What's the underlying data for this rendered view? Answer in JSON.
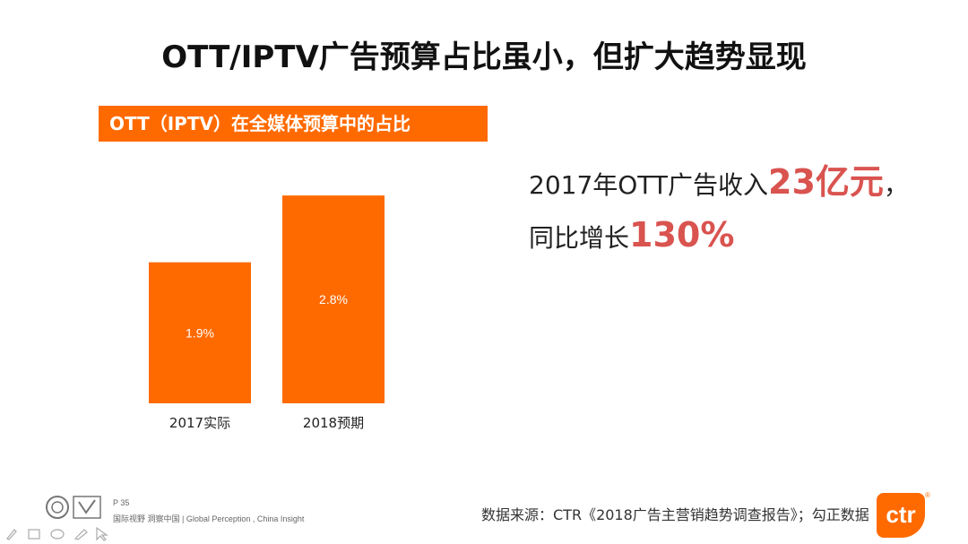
{
  "slide": {
    "title": "OTT/IPTV广告预算占比虽小，但扩大趋势显现"
  },
  "chart_data": {
    "type": "bar",
    "title": "OTT（IPTV）在全媒体预算中的占比",
    "categories": [
      "2017实际",
      "2018预期"
    ],
    "values": [
      1.9,
      2.8
    ],
    "value_labels": [
      "1.9%",
      "2.8%"
    ],
    "ylim": [
      0,
      3.2
    ],
    "grid": false,
    "legend": "none",
    "bar_color": "#ff6a00"
  },
  "stats": {
    "line1_prefix": "2017年OTT广告收入",
    "line1_highlight": "23亿元",
    "line1_suffix": "，",
    "line2_prefix": "同比增长",
    "line2_highlight": "130%"
  },
  "footer": {
    "page": "P 35",
    "tagline": "国际视野  洞察中国 |  Global Perception , China Insight",
    "source": "数据来源：CTR《2018广告主营销趋势调查报告》；勾正数据",
    "logo_text": "ctr",
    "reg_mark": "®"
  },
  "colors": {
    "accent": "#ff6a00",
    "highlight": "#d9534f"
  },
  "icons": [
    "certification-logo-icon",
    "pen-tool-icon",
    "highlighter-icon",
    "eraser-icon",
    "pointer-icon"
  ]
}
